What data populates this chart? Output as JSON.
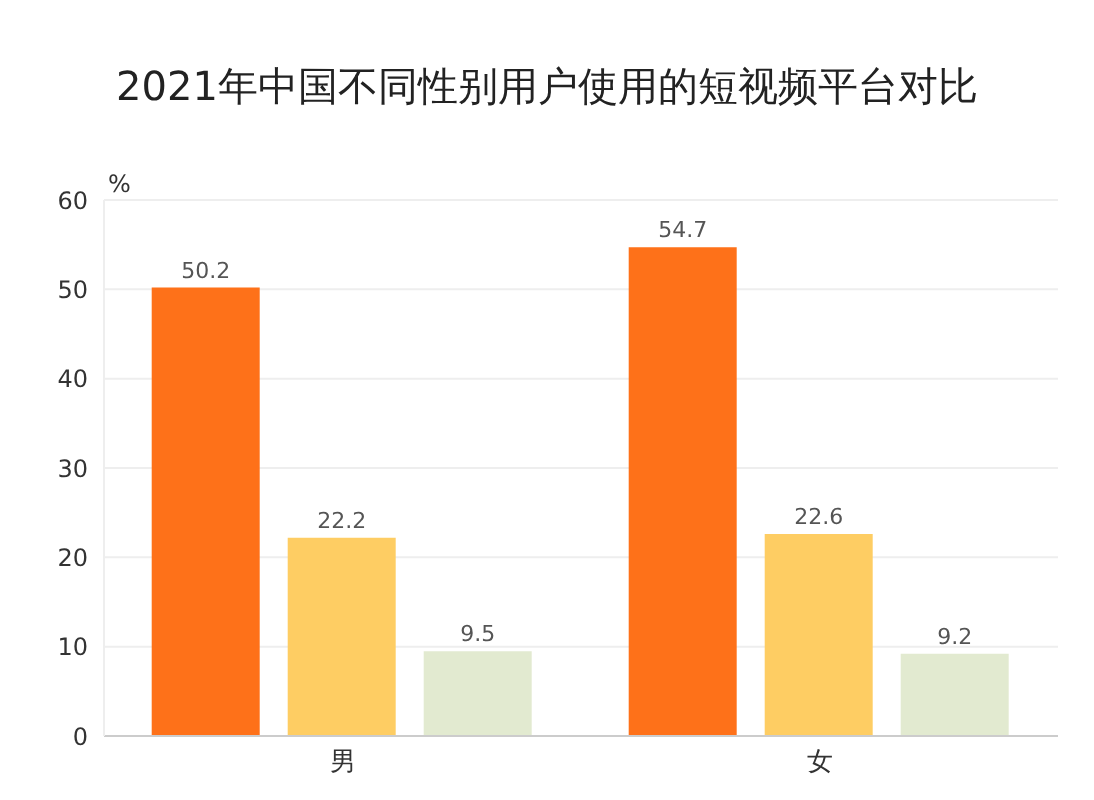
{
  "chart_data": {
    "type": "bar",
    "title": "2021年中国不同性别用户使用的短视频平台对比",
    "ylabel": "%",
    "categories": [
      "男",
      "女"
    ],
    "series": [
      {
        "color": "#fe7119",
        "values": [
          50.2,
          54.7
        ]
      },
      {
        "color": "#fecd63",
        "values": [
          22.2,
          22.6
        ]
      },
      {
        "color": "#e2ead0",
        "values": [
          9.5,
          9.2
        ]
      }
    ],
    "ylim": [
      0,
      60
    ],
    "yticks": [
      0,
      10,
      20,
      30,
      40,
      50,
      60
    ],
    "grid": "y",
    "data_labels": true,
    "legend": false
  }
}
